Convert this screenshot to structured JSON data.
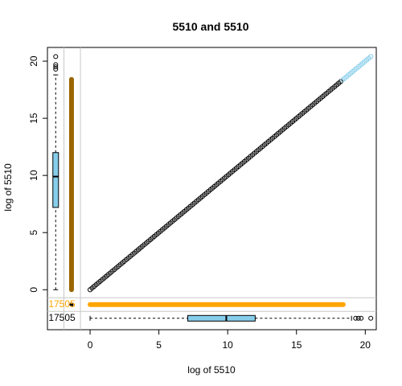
{
  "chart_data": {
    "type": "scatter",
    "title": "5510  and 5510",
    "xlabel": "log of 5510",
    "ylabel": "log of 5510",
    "xlim": [
      -3.1,
      20.8
    ],
    "ylim": [
      -3.5,
      21.2
    ],
    "x_ticks": [
      0,
      5,
      10,
      15,
      20
    ],
    "y_ticks": [
      0,
      5,
      10,
      15,
      20
    ],
    "grid": false,
    "points_along_identity": {
      "from": 0,
      "to": 20.4,
      "color_main": "#000000",
      "color_extreme": "#87CEEB"
    },
    "zero_x_count": "17505",
    "zero_y_count": "17505",
    "zero_x_strip": {
      "y_from": 0,
      "y_to": 18.4,
      "color": "#996600"
    },
    "zero_y_strip": {
      "x_from": 0,
      "x_to": 18.4,
      "color": "#FFA500"
    },
    "boxplot_y": {
      "min": 0,
      "q1": 7.2,
      "median": 9.9,
      "q3": 12.0,
      "max": 18.8,
      "outliers": [
        19.3,
        19.5,
        19.7,
        20.4
      ],
      "fill": "#87CEEB"
    },
    "boxplot_x": {
      "min": 0,
      "q1": 7.1,
      "median": 9.9,
      "q3": 12.0,
      "max": 19.0,
      "outliers": [
        19.3,
        19.5,
        19.7,
        20.4
      ],
      "fill": "#87CEEB"
    },
    "colors": {
      "count_x": "#FFA500",
      "count_y": "#000000",
      "divider": "#C8C8C8"
    }
  }
}
